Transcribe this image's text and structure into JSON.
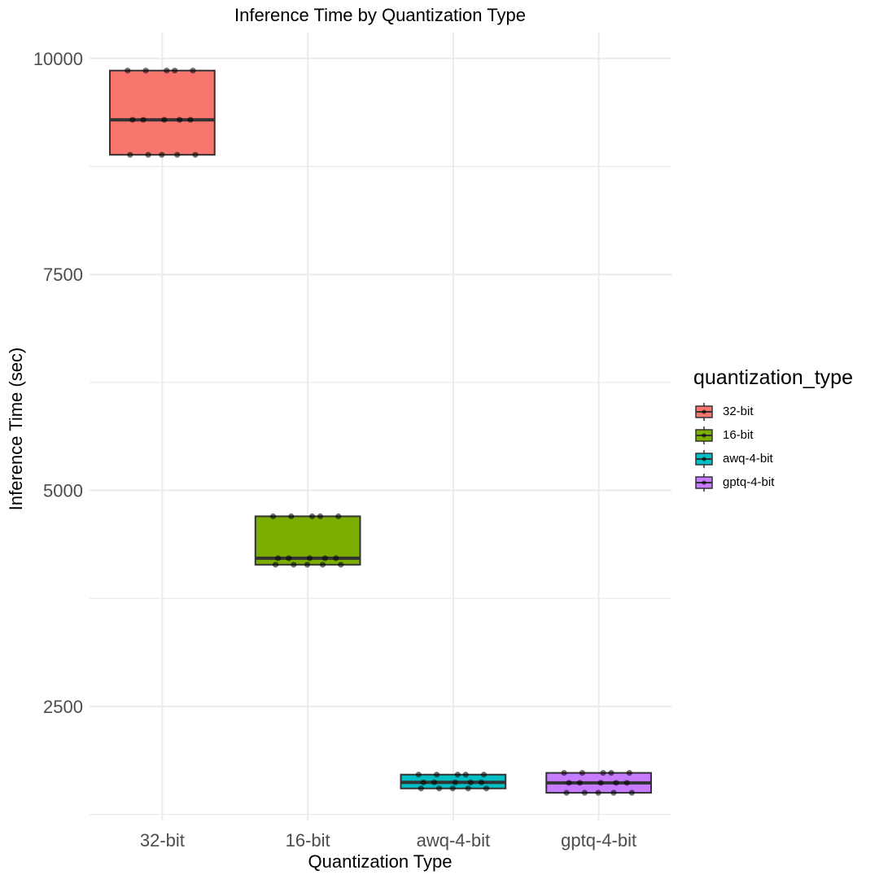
{
  "chart_data": {
    "type": "boxplot",
    "title": "Inference Time by Quantization Type",
    "xlabel": "Quantization Type",
    "ylabel": "Inference Time (sec)",
    "ylim": [
      1180,
      10300
    ],
    "yticks": [
      2500,
      5000,
      7500,
      10000
    ],
    "ytick_labels": [
      "2500",
      "5000",
      "7500",
      "10000"
    ],
    "grid": true,
    "legend_title": "quantization_type",
    "legend_position": "right",
    "categories": [
      "32-bit",
      "16-bit",
      "awq-4-bit",
      "gptq-4-bit"
    ],
    "series": [
      {
        "name": "32-bit",
        "color": "#F8766D",
        "box": {
          "q1": 8885,
          "median": 9290,
          "q3": 9860
        },
        "points": [
          9860,
          9860,
          9860,
          9860,
          9860,
          9290,
          9290,
          9290,
          9290,
          9290,
          8885,
          8885,
          8885,
          8885,
          8885
        ]
      },
      {
        "name": "16-bit",
        "color": "#7CAE00",
        "box": {
          "q1": 4140,
          "median": 4215,
          "q3": 4700
        },
        "points": [
          4700,
          4700,
          4700,
          4700,
          4700,
          4215,
          4215,
          4215,
          4215,
          4215,
          4140,
          4140,
          4140,
          4140,
          4140
        ]
      },
      {
        "name": "awq-4-bit",
        "color": "#00BFC4",
        "box": {
          "q1": 1550,
          "median": 1620,
          "q3": 1710
        },
        "points": [
          1710,
          1710,
          1710,
          1710,
          1710,
          1620,
          1620,
          1620,
          1620,
          1620,
          1550,
          1550,
          1550,
          1550,
          1550
        ]
      },
      {
        "name": "gptq-4-bit",
        "color": "#C77CFF",
        "box": {
          "q1": 1500,
          "median": 1615,
          "q3": 1730
        },
        "points": [
          1730,
          1730,
          1730,
          1730,
          1730,
          1615,
          1615,
          1615,
          1615,
          1615,
          1500,
          1500,
          1500,
          1500,
          1500
        ]
      }
    ]
  }
}
